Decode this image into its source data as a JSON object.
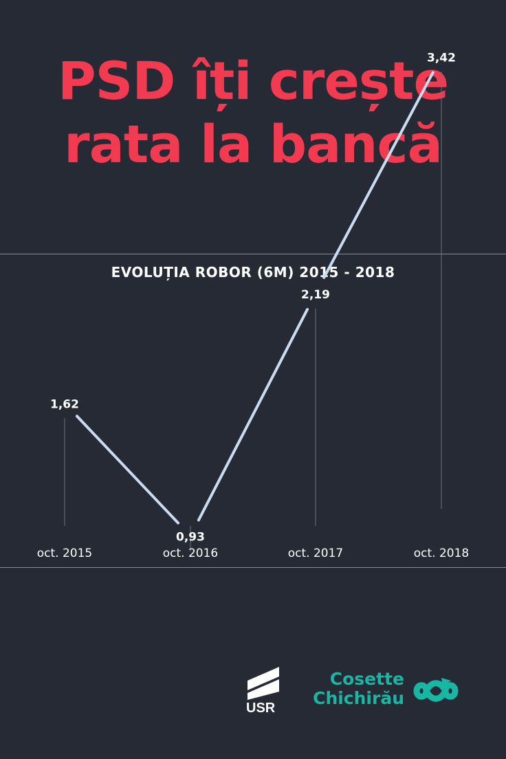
{
  "headline": {
    "line1": "PSD îți crește",
    "line2": "rata la bancă"
  },
  "colors": {
    "background": "#262a35",
    "headline": "#f23a50",
    "line": "#c9dcf2",
    "brand_teal": "#17b7a4"
  },
  "chart_data": {
    "type": "line",
    "title": "EVOLUȚIA ROBOR (6M) 2015 - 2018",
    "categories": [
      "oct. 2015",
      "oct. 2016",
      "oct. 2017",
      "oct. 2018"
    ],
    "values": [
      1.62,
      0.93,
      2.19,
      3.42
    ],
    "data_labels": [
      "1,62",
      "0,93",
      "2,19",
      "3,42"
    ],
    "xlabel": "",
    "ylabel": "",
    "grid": false,
    "legend": "none"
  },
  "logos": {
    "usr": "USR",
    "candidate_line1": "Cosette",
    "candidate_line2": "Chichirău",
    "candidate_icon": "infinity-arrows-icon"
  }
}
